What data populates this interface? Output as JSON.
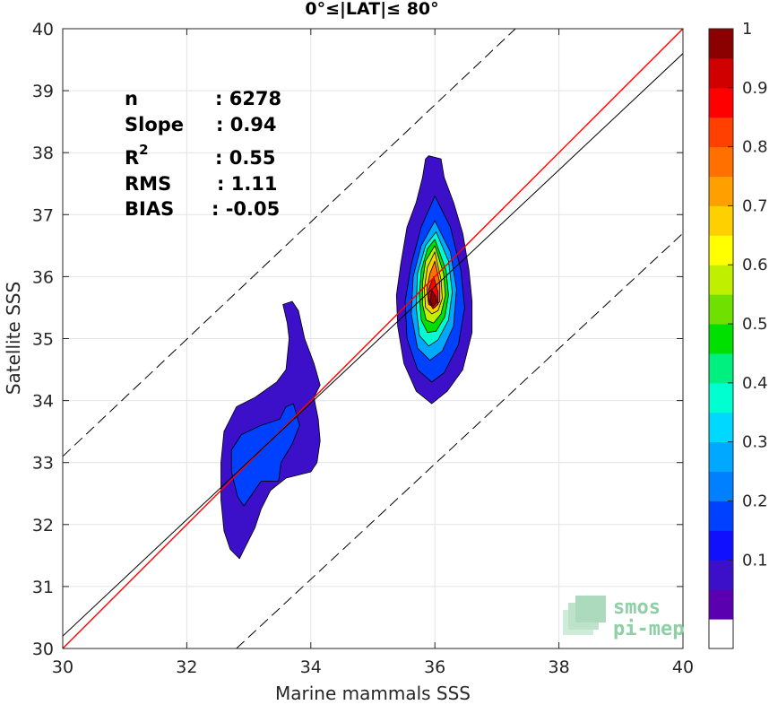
{
  "chart_data": {
    "type": "heatmap",
    "title": "0°≤|LAT|≤ 80°",
    "xlabel": "Marine mammals SSS",
    "ylabel": "Satellite SSS",
    "xlim": [
      30,
      40
    ],
    "ylim": [
      30,
      40
    ],
    "xticks": [
      30,
      32,
      34,
      36,
      38,
      40
    ],
    "yticks": [
      30,
      31,
      32,
      33,
      34,
      35,
      36,
      37,
      38,
      39,
      40
    ],
    "grid": true,
    "stats": [
      {
        "label": "n",
        "sep": ": ",
        "value": "6278"
      },
      {
        "label": "Slope",
        "sep": ": ",
        "value": "0.94"
      },
      {
        "label": "R",
        "sup": "2",
        "sep": ": ",
        "value": "0.55"
      },
      {
        "label": "RMS",
        "sep": ": ",
        "value": "1.11"
      },
      {
        "label": "BIAS",
        "sep": ": ",
        "value": "-0.05"
      }
    ],
    "lines": [
      {
        "kind": "identity",
        "color": "#ff0000",
        "points": [
          [
            30,
            30
          ],
          [
            40,
            40
          ]
        ]
      },
      {
        "kind": "regression",
        "color": "#000000",
        "points": [
          [
            30,
            30.2
          ],
          [
            40,
            39.6
          ]
        ]
      },
      {
        "kind": "offset_plus",
        "color": "#000000",
        "dashed": true,
        "points": [
          [
            30,
            33.1
          ],
          [
            37.3,
            40
          ]
        ]
      },
      {
        "kind": "offset_minus",
        "color": "#000000",
        "dashed": true,
        "points": [
          [
            32.8,
            30
          ],
          [
            40,
            36.7
          ]
        ]
      }
    ],
    "colorbar": {
      "ticks": [
        0.1,
        0.2,
        0.3,
        0.4,
        0.5,
        0.6,
        0.7,
        0.8,
        0.9,
        1
      ],
      "tick_labels": [
        "0.1",
        "0.2",
        "0.3",
        "0.4",
        "0.5",
        "0.6",
        "0.7",
        "0.8",
        "0.9",
        "1"
      ],
      "levels": [
        0,
        0.05,
        0.1,
        0.15,
        0.2,
        0.25,
        0.3,
        0.35,
        0.4,
        0.45,
        0.5,
        0.55,
        0.6,
        0.65,
        0.7,
        0.75,
        0.8,
        0.85,
        0.9,
        0.95,
        1
      ],
      "colors": [
        "#ffffff",
        "#5a00b0",
        "#3c10c8",
        "#1010ff",
        "#0040ff",
        "#0080ff",
        "#00a8ff",
        "#00d8ff",
        "#00ffd0",
        "#00f080",
        "#00e000",
        "#70e000",
        "#c0f000",
        "#ffff00",
        "#ffd000",
        "#ffa000",
        "#ff7000",
        "#ff4000",
        "#ff0000",
        "#d00000",
        "#8b0000"
      ]
    },
    "density": {
      "clusters": [
        {
          "center": [
            36.0,
            35.75
          ],
          "levels": [
            {
              "level": 0.05,
              "polygon": [
                [
                  35.9,
                  37.95
                ],
                [
                  36.1,
                  37.9
                ],
                [
                  36.15,
                  37.6
                ],
                [
                  36.3,
                  37.2
                ],
                [
                  36.45,
                  36.7
                ],
                [
                  36.55,
                  36.1
                ],
                [
                  36.6,
                  35.6
                ],
                [
                  36.6,
                  35.1
                ],
                [
                  36.45,
                  34.5
                ],
                [
                  36.2,
                  34.15
                ],
                [
                  35.95,
                  33.95
                ],
                [
                  35.7,
                  34.15
                ],
                [
                  35.5,
                  34.6
                ],
                [
                  35.4,
                  35.2
                ],
                [
                  35.38,
                  35.7
                ],
                [
                  35.45,
                  36.2
                ],
                [
                  35.55,
                  36.8
                ],
                [
                  35.7,
                  37.2
                ],
                [
                  35.8,
                  37.6
                ],
                [
                  35.85,
                  37.9
                ]
              ]
            },
            {
              "level": 0.15,
              "polygon": [
                [
                  36.0,
                  37.3
                ],
                [
                  36.25,
                  36.8
                ],
                [
                  36.42,
                  36.1
                ],
                [
                  36.48,
                  35.5
                ],
                [
                  36.38,
                  34.9
                ],
                [
                  36.15,
                  34.45
                ],
                [
                  35.95,
                  34.3
                ],
                [
                  35.72,
                  34.5
                ],
                [
                  35.55,
                  35.0
                ],
                [
                  35.52,
                  35.6
                ],
                [
                  35.62,
                  36.2
                ],
                [
                  35.78,
                  36.8
                ]
              ]
            },
            {
              "level": 0.25,
              "polygon": [
                [
                  36.0,
                  36.9
                ],
                [
                  36.25,
                  36.4
                ],
                [
                  36.35,
                  35.8
                ],
                [
                  36.3,
                  35.2
                ],
                [
                  36.12,
                  34.8
                ],
                [
                  35.92,
                  34.65
                ],
                [
                  35.72,
                  34.85
                ],
                [
                  35.62,
                  35.4
                ],
                [
                  35.65,
                  36.0
                ],
                [
                  35.78,
                  36.5
                ]
              ]
            },
            {
              "level": 0.35,
              "polygon": [
                [
                  36.02,
                  36.72
                ],
                [
                  36.22,
                  36.25
                ],
                [
                  36.28,
                  35.75
                ],
                [
                  36.22,
                  35.3
                ],
                [
                  36.05,
                  34.98
                ],
                [
                  35.9,
                  34.88
                ],
                [
                  35.75,
                  35.05
                ],
                [
                  35.7,
                  35.5
                ],
                [
                  35.72,
                  36.05
                ],
                [
                  35.85,
                  36.5
                ]
              ]
            },
            {
              "level": 0.45,
              "polygon": [
                [
                  36.0,
                  36.6
                ],
                [
                  36.18,
                  36.1
                ],
                [
                  36.22,
                  35.7
                ],
                [
                  36.16,
                  35.35
                ],
                [
                  36.02,
                  35.12
                ],
                [
                  35.88,
                  35.1
                ],
                [
                  35.78,
                  35.3
                ],
                [
                  35.75,
                  35.7
                ],
                [
                  35.78,
                  36.1
                ],
                [
                  35.88,
                  36.45
                ]
              ]
            },
            {
              "level": 0.55,
              "polygon": [
                [
                  36.0,
                  36.5
                ],
                [
                  36.14,
                  36.05
                ],
                [
                  36.17,
                  35.7
                ],
                [
                  36.1,
                  35.4
                ],
                [
                  35.98,
                  35.25
                ],
                [
                  35.86,
                  35.3
                ],
                [
                  35.8,
                  35.55
                ],
                [
                  35.8,
                  35.9
                ],
                [
                  35.85,
                  36.25
                ]
              ]
            },
            {
              "level": 0.65,
              "polygon": [
                [
                  36.0,
                  36.4
                ],
                [
                  36.1,
                  35.95
                ],
                [
                  36.12,
                  35.65
                ],
                [
                  36.05,
                  35.45
                ],
                [
                  35.95,
                  35.4
                ],
                [
                  35.85,
                  35.5
                ],
                [
                  35.83,
                  35.8
                ],
                [
                  35.88,
                  36.15
                ]
              ]
            },
            {
              "level": 0.75,
              "polygon": [
                [
                  36.0,
                  36.25
                ],
                [
                  36.08,
                  35.9
                ],
                [
                  36.08,
                  35.6
                ],
                [
                  36.0,
                  35.5
                ],
                [
                  35.9,
                  35.55
                ],
                [
                  35.87,
                  35.8
                ],
                [
                  35.92,
                  36.05
                ]
              ]
            },
            {
              "level": 0.85,
              "polygon": [
                [
                  35.98,
                  36.0
                ],
                [
                  36.05,
                  35.75
                ],
                [
                  36.05,
                  35.55
                ],
                [
                  35.97,
                  35.48
                ],
                [
                  35.9,
                  35.6
                ],
                [
                  35.9,
                  35.8
                ]
              ]
            },
            {
              "level": 0.95,
              "polygon": [
                [
                  35.95,
                  35.78
                ],
                [
                  36.02,
                  35.68
                ],
                [
                  36.03,
                  35.58
                ],
                [
                  35.97,
                  35.52
                ],
                [
                  35.92,
                  35.6
                ]
              ]
            }
          ]
        },
        {
          "center": [
            33.3,
            33.2
          ],
          "levels": [
            {
              "level": 0.05,
              "polygon": [
                [
                  33.7,
                  35.6
                ],
                [
                  33.8,
                  35.45
                ],
                [
                  33.9,
                  35.0
                ],
                [
                  34.05,
                  34.6
                ],
                [
                  34.15,
                  34.25
                ],
                [
                  34.05,
                  34.05
                ],
                [
                  34.12,
                  33.7
                ],
                [
                  34.15,
                  33.35
                ],
                [
                  34.1,
                  33.0
                ],
                [
                  34.0,
                  32.85
                ],
                [
                  33.6,
                  32.75
                ],
                [
                  33.35,
                  32.55
                ],
                [
                  33.2,
                  32.25
                ],
                [
                  33.1,
                  31.95
                ],
                [
                  32.95,
                  31.65
                ],
                [
                  32.85,
                  31.45
                ],
                [
                  32.7,
                  31.6
                ],
                [
                  32.6,
                  31.9
                ],
                [
                  32.55,
                  32.4
                ],
                [
                  32.55,
                  33.0
                ],
                [
                  32.6,
                  33.5
                ],
                [
                  32.8,
                  33.9
                ],
                [
                  33.1,
                  34.05
                ],
                [
                  33.45,
                  34.3
                ],
                [
                  33.6,
                  34.5
                ],
                [
                  33.65,
                  35.0
                ],
                [
                  33.62,
                  35.25
                ],
                [
                  33.55,
                  35.55
                ]
              ]
            },
            {
              "level": 0.15,
              "polygon": [
                [
                  33.72,
                  33.95
                ],
                [
                  33.82,
                  33.6
                ],
                [
                  33.7,
                  33.3
                ],
                [
                  33.52,
                  33.0
                ],
                [
                  33.48,
                  32.7
                ],
                [
                  33.2,
                  32.7
                ],
                [
                  32.92,
                  32.3
                ],
                [
                  32.82,
                  32.45
                ],
                [
                  32.72,
                  32.85
                ],
                [
                  32.72,
                  33.2
                ],
                [
                  32.88,
                  33.45
                ],
                [
                  33.2,
                  33.6
                ],
                [
                  33.5,
                  33.7
                ],
                [
                  33.6,
                  33.9
                ]
              ]
            }
          ]
        }
      ]
    },
    "logo": {
      "line1": "smos",
      "line2": "pi-mep"
    }
  }
}
